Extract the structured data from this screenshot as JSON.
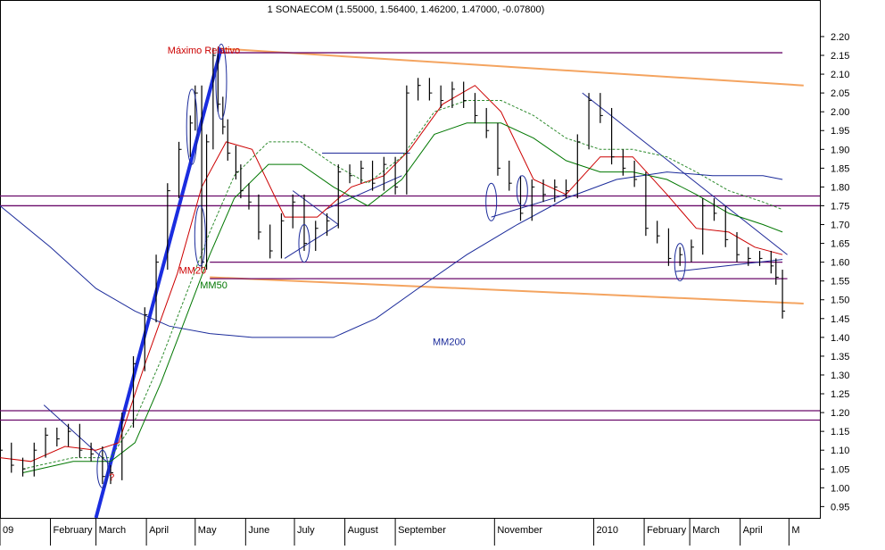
{
  "chart_data": {
    "type": "line",
    "title": "1 SONAECOM (1.55000, 1.56400, 1.46200, 1.47000, -0.07800)",
    "xlabel": "",
    "ylabel": "",
    "ylim": [
      0.92,
      2.245
    ],
    "y_ticks": [
      0.95,
      1.0,
      1.05,
      1.1,
      1.15,
      1.2,
      1.25,
      1.3,
      1.35,
      1.4,
      1.45,
      1.5,
      1.55,
      1.6,
      1.65,
      1.7,
      1.75,
      1.8,
      1.85,
      1.9,
      1.95,
      2.0,
      2.05,
      2.1,
      2.15,
      2.2
    ],
    "y_tick_labels": [
      "0.95",
      "1.00",
      "1.05",
      "1.10",
      "1.15",
      "1.20",
      "1.25",
      "1.30",
      "1.35",
      "1.40",
      "1.45",
      "1.50",
      "1.55",
      "1.60",
      "1.65",
      "1.70",
      "1.75",
      "1.80",
      "1.85",
      "1.90",
      "1.95",
      "2.00",
      "2.05",
      "2.10",
      "2.15",
      "2.20"
    ],
    "x_range": [
      "2009-01-01",
      "2010-05-20"
    ],
    "x_ticks": [
      {
        "date": "2009-01-01",
        "label": "09"
      },
      {
        "date": "2009-02-01",
        "label": "February"
      },
      {
        "date": "2009-03-01",
        "label": "March"
      },
      {
        "date": "2009-04-01",
        "label": "April"
      },
      {
        "date": "2009-05-01",
        "label": "May"
      },
      {
        "date": "2009-06-01",
        "label": "June"
      },
      {
        "date": "2009-07-01",
        "label": "July"
      },
      {
        "date": "2009-08-01",
        "label": "August"
      },
      {
        "date": "2009-09-01",
        "label": "September"
      },
      {
        "date": "2009-11-01",
        "label": "November"
      },
      {
        "date": "2010-01-01",
        "label": "2010"
      },
      {
        "date": "2010-02-01",
        "label": "February"
      },
      {
        "date": "2010-03-01",
        "label": "March"
      },
      {
        "date": "2010-04-01",
        "label": "April"
      },
      {
        "date": "2010-05-01",
        "label": "M"
      }
    ],
    "grid": false,
    "colors": {
      "price": "#000000",
      "mm20": "#cc0000",
      "mm50": "#007700",
      "mm200": "#1a2a9a",
      "mm50_dashed": "#2e8b2e",
      "trend_orange": "#f4a460",
      "resistance_purple": "#6a0a6a",
      "trend_blue": "#1f2a99",
      "thick_blue": "#1a2de0"
    },
    "annotations": [
      {
        "text": "Máximo Relativo",
        "date": "2009-04-14",
        "y": 2.155,
        "color": "#cc0000"
      },
      {
        "text": "MM20",
        "date": "2009-04-21",
        "y": 1.57,
        "color": "#cc0000"
      },
      {
        "text": "MM50",
        "date": "2009-05-04",
        "y": 1.53,
        "color": "#007700"
      },
      {
        "text": "MM200",
        "date": "2009-09-24",
        "y": 1.38,
        "color": "#1a2a9a"
      },
      {
        "text": "?",
        "date": "2009-03-09",
        "y": 1.02,
        "color": "#cc0000"
      }
    ],
    "series": [
      {
        "name": "",
        "role": "price",
        "style": "bar",
        "x": [
          "2009-01-01",
          "2009-01-08",
          "2009-01-15",
          "2009-01-22",
          "2009-01-29",
          "2009-02-05",
          "2009-02-12",
          "2009-02-19",
          "2009-02-26",
          "2009-03-05",
          "2009-03-10",
          "2009-03-17",
          "2009-03-24",
          "2009-03-31",
          "2009-04-07",
          "2009-04-14",
          "2009-04-21",
          "2009-04-28",
          "2009-05-01",
          "2009-05-05",
          "2009-05-08",
          "2009-05-12",
          "2009-05-15",
          "2009-05-18",
          "2009-05-21",
          "2009-05-26",
          "2009-05-29",
          "2009-06-03",
          "2009-06-09",
          "2009-06-16",
          "2009-06-23",
          "2009-06-30",
          "2009-07-07",
          "2009-07-14",
          "2009-07-21",
          "2009-07-28",
          "2009-08-04",
          "2009-08-11",
          "2009-08-18",
          "2009-08-25",
          "2009-09-01",
          "2009-09-08",
          "2009-09-15",
          "2009-09-22",
          "2009-09-29",
          "2009-10-06",
          "2009-10-13",
          "2009-10-20",
          "2009-10-27",
          "2009-11-03",
          "2009-11-10",
          "2009-11-17",
          "2009-11-24",
          "2009-12-01",
          "2009-12-08",
          "2009-12-15",
          "2009-12-22",
          "2009-12-29",
          "2010-01-05",
          "2010-01-12",
          "2010-01-19",
          "2010-01-26",
          "2010-02-02",
          "2010-02-09",
          "2010-02-16",
          "2010-02-23",
          "2010-03-02",
          "2010-03-09",
          "2010-03-16",
          "2010-03-23",
          "2010-03-30",
          "2010-04-06",
          "2010-04-13",
          "2010-04-20",
          "2010-04-23",
          "2010-04-27"
        ],
        "close": [
          1.1,
          1.06,
          1.05,
          1.1,
          1.14,
          1.13,
          1.15,
          1.1,
          1.09,
          1.03,
          1.04,
          1.18,
          1.33,
          1.46,
          1.6,
          1.79,
          1.9,
          1.97,
          2.05,
          1.6,
          1.92,
          2.15,
          2.02,
          1.96,
          1.89,
          1.84,
          1.79,
          1.76,
          1.68,
          1.63,
          1.71,
          1.76,
          1.65,
          1.69,
          1.71,
          1.84,
          1.83,
          1.85,
          1.81,
          1.86,
          1.8,
          2.05,
          2.07,
          2.05,
          2.03,
          2.06,
          2.03,
          1.99,
          1.95,
          1.85,
          1.81,
          1.73,
          1.8,
          1.78,
          1.8,
          1.79,
          1.92,
          2.03,
          1.99,
          1.88,
          1.85,
          1.82,
          1.69,
          1.67,
          1.61,
          1.62,
          1.64,
          1.75,
          1.73,
          1.66,
          1.62,
          1.61,
          1.61,
          1.59,
          1.56,
          1.47
        ]
      },
      {
        "name": "MM20",
        "role": "ma",
        "x": [
          "2009-01-01",
          "2009-01-20",
          "2009-02-10",
          "2009-03-01",
          "2009-03-15",
          "2009-04-01",
          "2009-04-20",
          "2009-05-05",
          "2009-05-20",
          "2009-06-05",
          "2009-06-25",
          "2009-07-15",
          "2009-08-05",
          "2009-08-25",
          "2009-09-10",
          "2009-09-30",
          "2009-10-20",
          "2009-11-05",
          "2009-11-25",
          "2009-12-15",
          "2010-01-05",
          "2010-01-25",
          "2010-02-15",
          "2010-03-05",
          "2010-03-25",
          "2010-04-10",
          "2010-04-27"
        ],
        "values": [
          1.08,
          1.07,
          1.11,
          1.1,
          1.12,
          1.34,
          1.57,
          1.8,
          1.92,
          1.9,
          1.72,
          1.72,
          1.8,
          1.83,
          1.9,
          2.02,
          2.07,
          2.0,
          1.82,
          1.78,
          1.88,
          1.88,
          1.78,
          1.69,
          1.68,
          1.64,
          1.62
        ]
      },
      {
        "name": "MM50",
        "role": "ma",
        "x": [
          "2009-01-15",
          "2009-02-15",
          "2009-03-10",
          "2009-03-25",
          "2009-04-10",
          "2009-04-25",
          "2009-05-10",
          "2009-05-25",
          "2009-06-15",
          "2009-07-05",
          "2009-07-25",
          "2009-08-15",
          "2009-09-05",
          "2009-09-25",
          "2009-10-15",
          "2009-11-05",
          "2009-11-25",
          "2009-12-15",
          "2010-01-05",
          "2010-01-25",
          "2010-02-15",
          "2010-03-05",
          "2010-03-25",
          "2010-04-15",
          "2010-04-27"
        ],
        "values": [
          1.04,
          1.07,
          1.07,
          1.12,
          1.28,
          1.45,
          1.62,
          1.77,
          1.86,
          1.86,
          1.8,
          1.75,
          1.82,
          1.94,
          1.97,
          1.97,
          1.93,
          1.87,
          1.84,
          1.84,
          1.82,
          1.78,
          1.73,
          1.7,
          1.68
        ]
      },
      {
        "name": "MM200",
        "role": "ma",
        "x": [
          "2009-01-01",
          "2009-02-01",
          "2009-03-01",
          "2009-03-25",
          "2009-04-15",
          "2009-05-10",
          "2009-06-05",
          "2009-07-01",
          "2009-07-25",
          "2009-08-20",
          "2009-09-15",
          "2009-10-15",
          "2009-11-15",
          "2009-12-15",
          "2010-01-15",
          "2010-02-15",
          "2010-03-15",
          "2010-04-15",
          "2010-04-27"
        ],
        "values": [
          1.75,
          1.64,
          1.53,
          1.47,
          1.43,
          1.41,
          1.4,
          1.4,
          1.4,
          1.45,
          1.53,
          1.62,
          1.7,
          1.77,
          1.82,
          1.84,
          1.83,
          1.83,
          1.82
        ]
      }
    ],
    "trendlines": [
      {
        "role": "thick_blue",
        "from": [
          "2009-03-01",
          0.92
        ],
        "to": [
          "2009-05-17",
          2.17
        ]
      },
      {
        "role": "trend_orange",
        "from": [
          "2009-05-17",
          2.168
        ],
        "to": [
          "2010-05-10",
          2.07
        ]
      },
      {
        "role": "trend_orange",
        "from": [
          "2009-05-10",
          1.56
        ],
        "to": [
          "2010-05-10",
          1.49
        ]
      },
      {
        "role": "resistance_purple",
        "from": [
          "2009-05-17",
          2.157
        ],
        "to": [
          "2010-04-27",
          2.157
        ]
      },
      {
        "role": "resistance_purple",
        "from": [
          "2009-01-01",
          1.776
        ],
        "to": [
          "2010-05-20",
          1.776
        ]
      },
      {
        "role": "resistance_purple",
        "from": [
          "2009-01-01",
          1.75
        ],
        "to": [
          "2010-05-20",
          1.75
        ]
      },
      {
        "role": "resistance_purple",
        "from": [
          "2009-05-10",
          1.6
        ],
        "to": [
          "2010-04-27",
          1.6
        ]
      },
      {
        "role": "resistance_purple",
        "from": [
          "2009-05-10",
          1.556
        ],
        "to": [
          "2010-04-30",
          1.556
        ]
      },
      {
        "role": "resistance_purple",
        "from": [
          "2009-01-01",
          1.205
        ],
        "to": [
          "2010-05-20",
          1.205
        ]
      },
      {
        "role": "resistance_purple",
        "from": [
          "2009-01-01",
          1.18
        ],
        "to": [
          "2010-05-20",
          1.18
        ]
      },
      {
        "role": "trend_blue",
        "from": [
          "2009-12-25",
          2.05
        ],
        "to": [
          "2010-04-30",
          1.62
        ]
      },
      {
        "role": "trend_blue",
        "from": [
          "2009-10-30",
          1.72
        ],
        "to": [
          "2009-12-15",
          1.78
        ]
      },
      {
        "role": "trend_blue",
        "from": [
          "2010-02-20",
          1.575
        ],
        "to": [
          "2010-04-27",
          1.607
        ]
      },
      {
        "role": "trend_blue",
        "from": [
          "2009-07-18",
          1.89
        ],
        "to": [
          "2009-09-10",
          1.89
        ]
      },
      {
        "role": "trend_blue",
        "from": [
          "2009-06-25",
          1.61
        ],
        "to": [
          "2009-07-28",
          1.7
        ]
      },
      {
        "role": "trend_blue",
        "from": [
          "2009-06-30",
          1.79
        ],
        "to": [
          "2009-07-28",
          1.7
        ]
      },
      {
        "role": "trend_blue",
        "from": [
          "2009-07-20",
          1.74
        ],
        "to": [
          "2009-09-05",
          1.83
        ]
      },
      {
        "role": "trend_blue",
        "from": [
          "2009-01-28",
          1.22
        ],
        "to": [
          "2009-03-10",
          1.06
        ]
      }
    ],
    "ellipses": [
      {
        "date": "2009-03-05",
        "y": 1.05,
        "ry": 0.05
      },
      {
        "date": "2009-04-29",
        "y": 1.96,
        "ry": 0.1
      },
      {
        "date": "2009-05-04",
        "y": 1.67,
        "ry": 0.08
      },
      {
        "date": "2009-05-17",
        "y": 2.08,
        "ry": 0.1
      },
      {
        "date": "2009-07-07",
        "y": 1.65,
        "ry": 0.05
      },
      {
        "date": "2009-10-30",
        "y": 1.76,
        "ry": 0.05
      },
      {
        "date": "2009-11-18",
        "y": 1.79,
        "ry": 0.04
      },
      {
        "date": "2010-02-23",
        "y": 1.6,
        "ry": 0.05
      }
    ]
  }
}
